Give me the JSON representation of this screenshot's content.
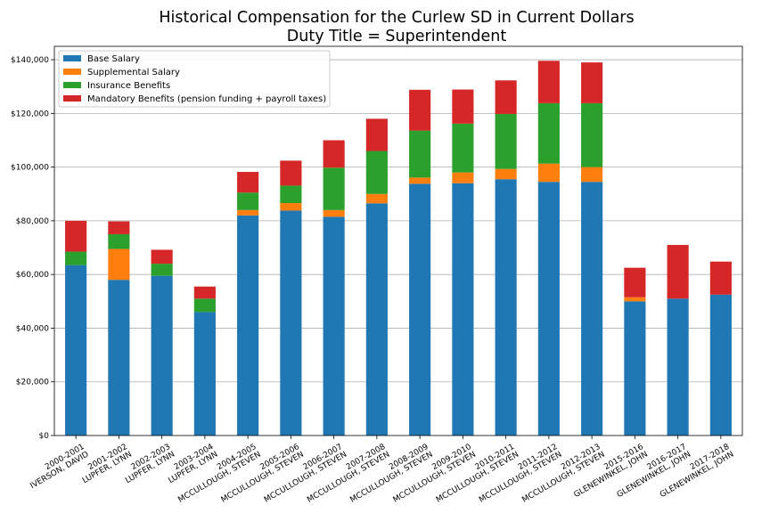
{
  "chart_data": {
    "type": "bar",
    "stacked": true,
    "title": "Historical Compensation for the Curlew SD in Current Dollars",
    "subtitle": "Duty Title = Superintendent",
    "xlabel": "",
    "ylabel": "",
    "ylim": [
      0,
      145000
    ],
    "yticks": [
      0,
      20000,
      40000,
      60000,
      80000,
      100000,
      120000,
      140000
    ],
    "ytick_labels": [
      "$0",
      "$20,000",
      "$40,000",
      "$60,000",
      "$80,000",
      "$100,000",
      "$120,000",
      "$140,000"
    ],
    "grid": "horizontal",
    "legend_position": "top-left",
    "categories": [
      "2000-2001\nIVERSON, DAVID",
      "2001-2002\nLUPFER, LYNN",
      "2002-2003\nLUPFER, LYNN",
      "2003-2004\nLUPFER, LYNN",
      "2004-2005\nMCCULLOUGH, STEVEN",
      "2005-2006\nMCCULLOUGH, STEVEN",
      "2006-2007\nMCCULLOUGH, STEVEN",
      "2007-2008\nMCCULLOUGH, STEVEN",
      "2008-2009\nMCCULLOUGH, STEVEN",
      "2009-2010\nMCCULLOUGH, STEVEN",
      "2010-2011\nMCCULLOUGH, STEVEN",
      "2011-2012\nMCCULLOUGH, STEVEN",
      "2012-2013\nMCCULLOUGH, STEVEN",
      "2015-2016\nGLENEWINKEL, JOHN",
      "2016-2017\nGLENEWINKEL, JOHN",
      "2017-2018\nGLENEWINKEL, JOHN"
    ],
    "series": [
      {
        "name": "Base Salary",
        "color": "#1f77b4",
        "values": [
          63500,
          58000,
          59500,
          46000,
          82000,
          83800,
          81500,
          86500,
          93800,
          94000,
          95500,
          94500,
          94500,
          50000,
          51000,
          52500
        ]
      },
      {
        "name": "Supplemental Salary",
        "color": "#ff7f0e",
        "values": [
          0,
          11500,
          0,
          0,
          2000,
          2800,
          2500,
          3500,
          2300,
          4000,
          3800,
          6800,
          5500,
          1500,
          0,
          0
        ]
      },
      {
        "name": "Insurance Benefits",
        "color": "#2ca02c",
        "values": [
          5000,
          5500,
          4500,
          5000,
          6500,
          6500,
          15800,
          16000,
          17500,
          18200,
          20500,
          22500,
          23800,
          0,
          0,
          0
        ]
      },
      {
        "name": "Mandatory Benefits (pension funding + payroll taxes)",
        "color": "#d62728",
        "values": [
          11500,
          4800,
          5200,
          4500,
          7700,
          9300,
          10200,
          12000,
          15200,
          12700,
          12500,
          15800,
          15200,
          11000,
          20000,
          12300
        ]
      }
    ]
  }
}
